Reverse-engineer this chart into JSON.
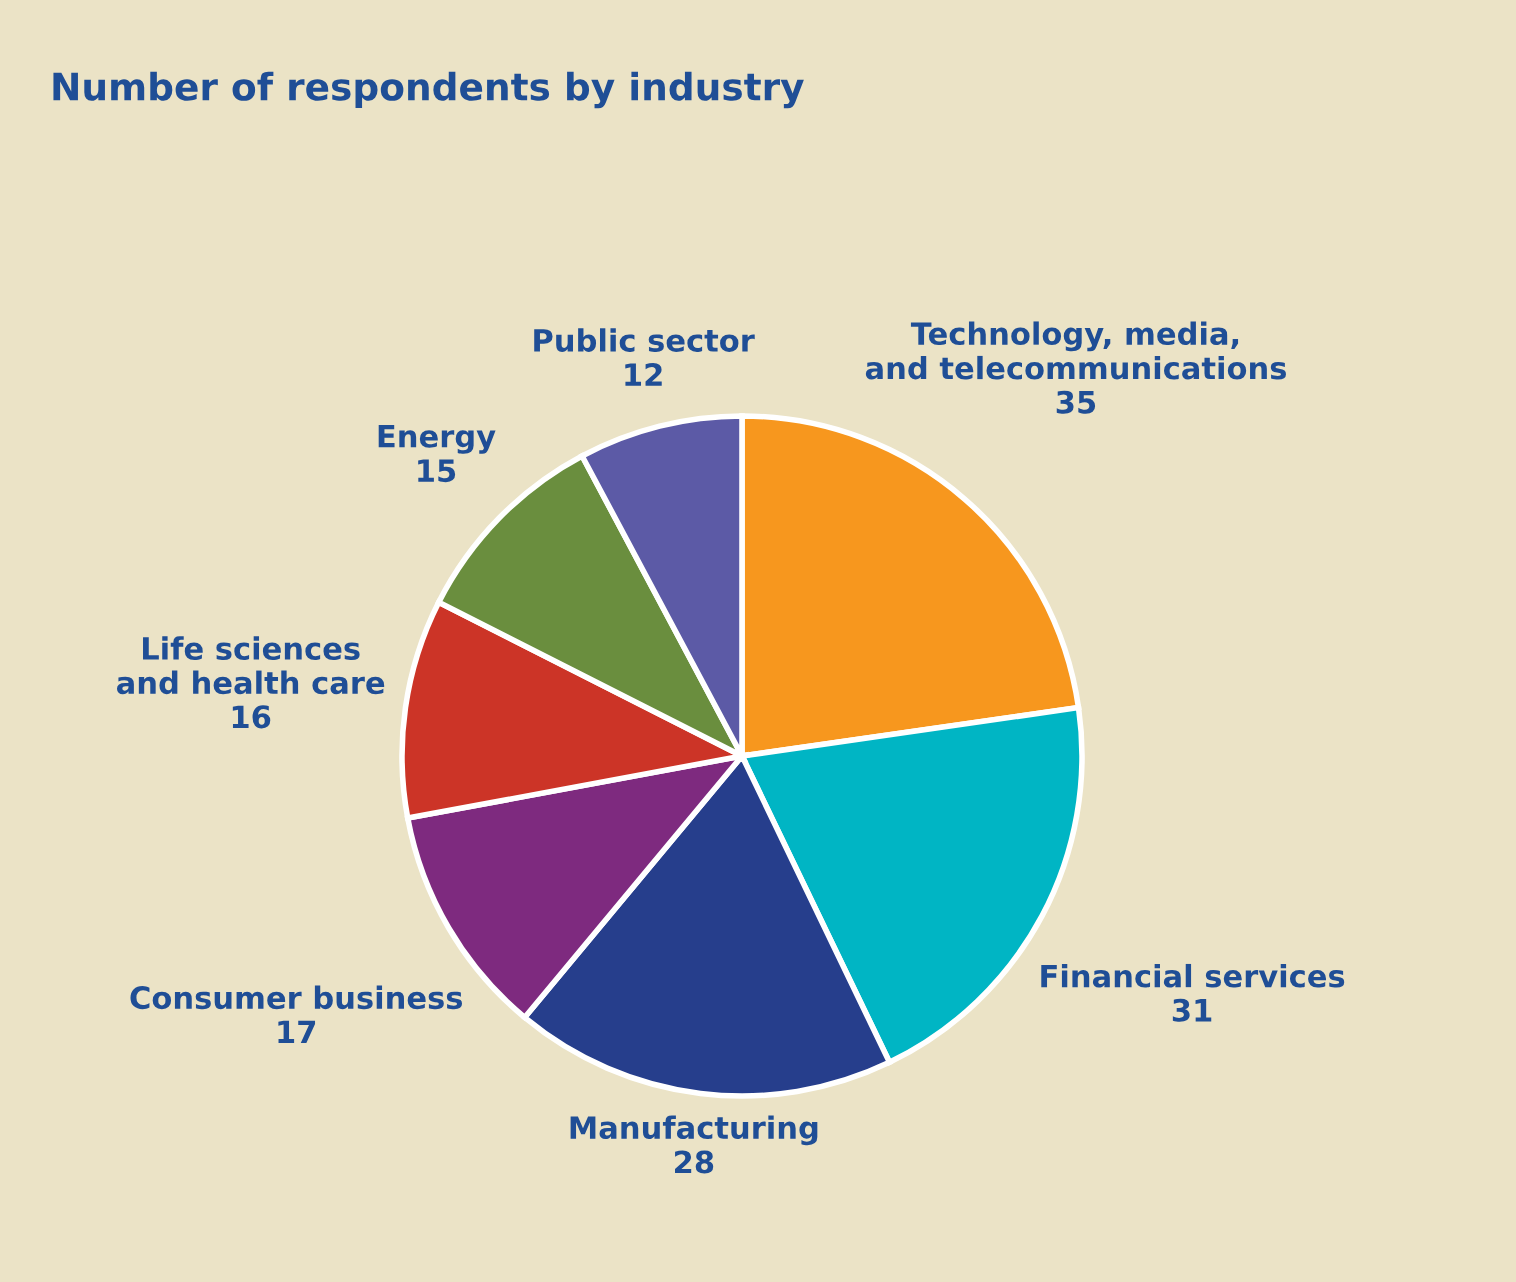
{
  "chart_data": {
    "type": "pie",
    "title": "Number of respondents by industry",
    "categories": [
      "Technology, media,\nand telecommunications",
      "Financial services",
      "Manufacturing",
      "Consumer business",
      "Life sciences\nand health care",
      "Energy",
      "Public sector"
    ],
    "values": [
      35,
      31,
      28,
      17,
      16,
      15,
      12
    ],
    "colors": [
      "#f7971e",
      "#00b5c4",
      "#263e8c",
      "#7e2a7f",
      "#cc3427",
      "#6a8e3e",
      "#5c5aa6"
    ],
    "data_labels": true,
    "legend": false
  }
}
